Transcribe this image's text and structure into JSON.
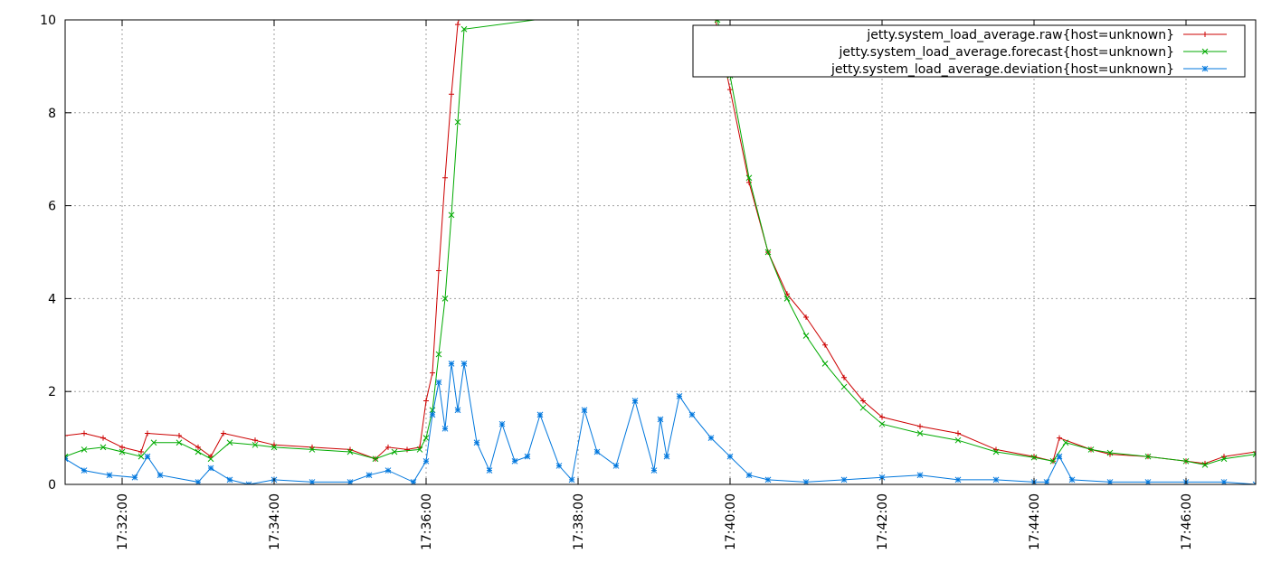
{
  "chart_data": {
    "type": "line",
    "title": "",
    "xlabel": "",
    "ylabel": "",
    "ylim": [
      0,
      10
    ],
    "xlim": [
      "17:31:15",
      "17:46:55"
    ],
    "grid": true,
    "legend_position": "top-right",
    "y_ticks": [
      "0",
      "2",
      "4",
      "6",
      "8",
      "10"
    ],
    "x_ticks": [
      "17:32:00",
      "17:34:00",
      "17:36:00",
      "17:38:00",
      "17:40:00",
      "17:42:00",
      "17:44:00",
      "17:46:00"
    ],
    "series": [
      {
        "name": "jetty.system_load_average.raw{host=unknown}",
        "color": "#cc0000",
        "marker": "plus",
        "x": [
          "17:31:15",
          "17:31:30",
          "17:31:45",
          "17:32:00",
          "17:32:15",
          "17:32:20",
          "17:32:45",
          "17:33:00",
          "17:33:10",
          "17:33:20",
          "17:33:45",
          "17:34:00",
          "17:34:30",
          "17:35:00",
          "17:35:20",
          "17:35:30",
          "17:35:45",
          "17:35:55",
          "17:36:00",
          "17:36:05",
          "17:36:10",
          "17:36:15",
          "17:36:20",
          "17:36:25",
          "17:36:30",
          "17:39:45",
          "17:39:50",
          "17:40:00",
          "17:40:15",
          "17:40:30",
          "17:40:45",
          "17:41:00",
          "17:41:15",
          "17:41:30",
          "17:41:45",
          "17:42:00",
          "17:42:30",
          "17:43:00",
          "17:43:30",
          "17:44:00",
          "17:44:15",
          "17:44:20",
          "17:44:45",
          "17:45:00",
          "17:45:30",
          "17:46:00",
          "17:46:15",
          "17:46:30",
          "17:46:55"
        ],
        "y": [
          1.05,
          1.1,
          1.0,
          0.8,
          0.7,
          1.1,
          1.05,
          0.8,
          0.6,
          1.1,
          0.95,
          0.85,
          0.8,
          0.75,
          0.55,
          0.8,
          0.75,
          0.8,
          1.8,
          2.4,
          4.6,
          6.6,
          8.4,
          9.9,
          10.5,
          10.5,
          9.8,
          8.5,
          6.5,
          5.0,
          4.1,
          3.6,
          3.0,
          2.3,
          1.8,
          1.45,
          1.25,
          1.1,
          0.75,
          0.6,
          0.5,
          1.0,
          0.75,
          0.65,
          0.6,
          0.5,
          0.45,
          0.6,
          0.7
        ]
      },
      {
        "name": "jetty.system_load_average.forecast{host=unknown}",
        "color": "#00aa00",
        "marker": "cross",
        "x": [
          "17:31:15",
          "17:31:30",
          "17:31:45",
          "17:32:00",
          "17:32:15",
          "17:32:25",
          "17:32:45",
          "17:33:00",
          "17:33:10",
          "17:33:25",
          "17:33:45",
          "17:34:00",
          "17:34:30",
          "17:35:00",
          "17:35:20",
          "17:35:35",
          "17:35:55",
          "17:36:00",
          "17:36:05",
          "17:36:10",
          "17:36:15",
          "17:36:20",
          "17:36:25",
          "17:36:30",
          "17:39:45",
          "17:39:50",
          "17:40:00",
          "17:40:15",
          "17:40:30",
          "17:40:45",
          "17:41:00",
          "17:41:15",
          "17:41:30",
          "17:41:45",
          "17:42:00",
          "17:42:30",
          "17:43:00",
          "17:43:30",
          "17:44:00",
          "17:44:15",
          "17:44:25",
          "17:44:45",
          "17:45:00",
          "17:45:30",
          "17:46:00",
          "17:46:15",
          "17:46:30",
          "17:46:55"
        ],
        "y": [
          0.6,
          0.75,
          0.8,
          0.7,
          0.6,
          0.9,
          0.9,
          0.7,
          0.55,
          0.9,
          0.85,
          0.8,
          0.75,
          0.7,
          0.55,
          0.7,
          0.75,
          1.0,
          1.6,
          2.8,
          4.0,
          5.8,
          7.8,
          9.8,
          10.5,
          10.0,
          8.8,
          6.6,
          5.0,
          4.0,
          3.2,
          2.6,
          2.1,
          1.65,
          1.3,
          1.1,
          0.95,
          0.7,
          0.58,
          0.5,
          0.9,
          0.75,
          0.68,
          0.6,
          0.5,
          0.42,
          0.55,
          0.65
        ]
      },
      {
        "name": "jetty.system_load_average.deviation{host=unknown}",
        "color": "#0077dd",
        "marker": "star",
        "x": [
          "17:31:15",
          "17:31:30",
          "17:31:50",
          "17:32:10",
          "17:32:20",
          "17:32:30",
          "17:33:00",
          "17:33:10",
          "17:33:25",
          "17:33:40",
          "17:34:00",
          "17:34:30",
          "17:35:00",
          "17:35:15",
          "17:35:30",
          "17:35:50",
          "17:36:00",
          "17:36:05",
          "17:36:10",
          "17:36:15",
          "17:36:20",
          "17:36:25",
          "17:36:30",
          "17:36:40",
          "17:36:50",
          "17:37:00",
          "17:37:10",
          "17:37:20",
          "17:37:30",
          "17:37:45",
          "17:37:55",
          "17:38:05",
          "17:38:15",
          "17:38:30",
          "17:38:45",
          "17:39:00",
          "17:39:05",
          "17:39:10",
          "17:39:20",
          "17:39:30",
          "17:39:45",
          "17:40:00",
          "17:40:15",
          "17:40:30",
          "17:41:00",
          "17:41:30",
          "17:42:00",
          "17:42:30",
          "17:43:00",
          "17:43:30",
          "17:44:00",
          "17:44:10",
          "17:44:20",
          "17:44:30",
          "17:45:00",
          "17:45:30",
          "17:46:00",
          "17:46:30",
          "17:46:55"
        ],
        "y": [
          0.55,
          0.3,
          0.2,
          0.15,
          0.6,
          0.2,
          0.05,
          0.35,
          0.1,
          0.0,
          0.1,
          0.05,
          0.05,
          0.2,
          0.3,
          0.05,
          0.5,
          1.5,
          2.2,
          1.2,
          2.6,
          1.6,
          2.6,
          0.9,
          0.3,
          1.3,
          0.5,
          0.6,
          1.5,
          0.4,
          0.1,
          1.6,
          0.7,
          0.4,
          1.8,
          0.3,
          1.4,
          0.6,
          1.9,
          1.5,
          1.0,
          0.6,
          0.2,
          0.1,
          0.05,
          0.1,
          0.15,
          0.2,
          0.1,
          0.1,
          0.05,
          0.05,
          0.6,
          0.1,
          0.05,
          0.05,
          0.05,
          0.05,
          0.0
        ]
      }
    ]
  }
}
